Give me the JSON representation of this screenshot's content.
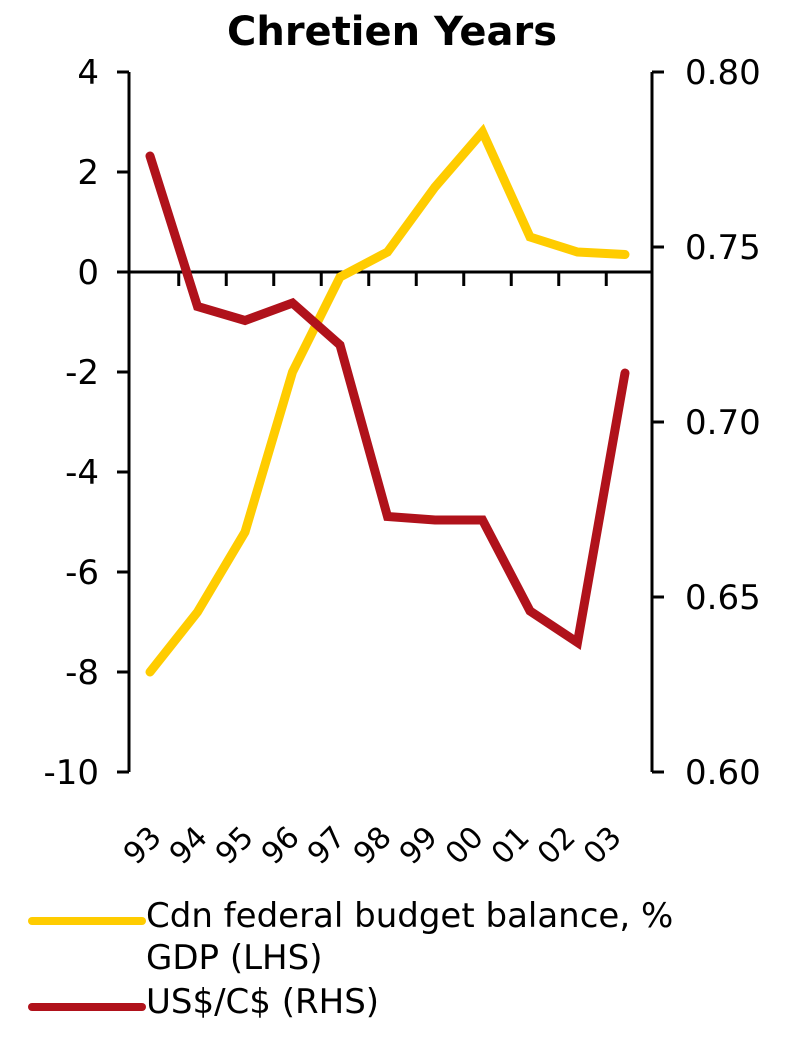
{
  "chart_data": {
    "type": "line",
    "title": "Chretien Years",
    "categories": [
      "93",
      "94",
      "95",
      "96",
      "97",
      "98",
      "99",
      "00",
      "01",
      "02",
      "03"
    ],
    "x_tick_points": [
      "93.5",
      "94.5",
      "95.5",
      "96.5",
      "97.5",
      "98.5",
      "99.5",
      "00.5",
      "01.5",
      "02.5"
    ],
    "left_axis": {
      "ylim": [
        -10,
        4
      ],
      "ticks": [
        "4",
        "2",
        "0",
        "-2",
        "-4",
        "-6",
        "-8",
        "-10"
      ]
    },
    "right_axis": {
      "ylim": [
        0.6,
        0.8
      ],
      "ticks": [
        "0.80",
        "0.75",
        "0.70",
        "0.65",
        "0.60"
      ]
    },
    "series": [
      {
        "name": "Cdn federal budget balance, % GDP (LHS)",
        "axis": "left",
        "color": "#FFCC00",
        "x": [
          93,
          94,
          95,
          96,
          97,
          98,
          99,
          100,
          101,
          102,
          103
        ],
        "values": [
          -8.0,
          -6.8,
          -5.2,
          -2.0,
          -0.1,
          0.4,
          1.7,
          2.8,
          0.7,
          0.4,
          0.35
        ]
      },
      {
        "name": "US$/C$ (RHS)",
        "axis": "right",
        "color": "#B0121B",
        "x": [
          93,
          94,
          95,
          96,
          97,
          98,
          99,
          100,
          101,
          102,
          103
        ],
        "values": [
          0.776,
          0.733,
          0.729,
          0.734,
          0.722,
          0.673,
          0.672,
          0.672,
          0.646,
          0.637,
          0.714
        ]
      }
    ],
    "legend_placement": "bottom",
    "grid": false
  }
}
